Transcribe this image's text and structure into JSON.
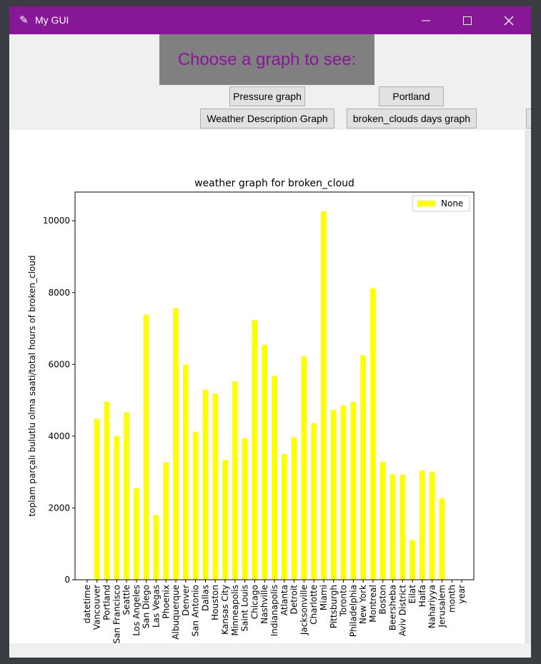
{
  "window": {
    "title": "My GUI",
    "icon": "feather-icon"
  },
  "header": {
    "prompt": "Choose a graph to see:"
  },
  "buttons": {
    "pressure": "Pressure graph",
    "portland": "Portland",
    "weather_description": "Weather Description Graph",
    "broken_clouds": "broken_clouds days graph"
  },
  "chart_data": {
    "type": "bar",
    "title": "weather graph for broken_cloud",
    "xlabel": "",
    "ylabel": "toplam parçalı bulutlu olma saati/total hours of broken_cloud",
    "ylim": [
      0,
      10800
    ],
    "yticks": [
      0,
      2000,
      4000,
      6000,
      8000,
      10000
    ],
    "legend": {
      "label": "None",
      "placement": "top-right"
    },
    "bar_color": "#ffff00",
    "categories": [
      "datetime",
      "Vancouver",
      "Portland",
      "San Francisco",
      "Seattle",
      "Los Angeles",
      "San Diego",
      "Las Vegas",
      "Phoenix",
      "Albuquerque",
      "Denver",
      "San Antonio",
      "Dallas",
      "Houston",
      "Kansas City",
      "Minneapolis",
      "Saint Louis",
      "Chicago",
      "Nashville",
      "Indianapolis",
      "Atlanta",
      "Detroit",
      "Jacksonville",
      "Charlotte",
      "Miami",
      "Pittsburgh",
      "Toronto",
      "Philadelphia",
      "New York",
      "Montreal",
      "Boston",
      "Beersheba",
      "Aviv District",
      "Eilat",
      "Haifa",
      "Nahariyya",
      "Jerusalem",
      "month",
      "year"
    ],
    "values": [
      0,
      4480,
      4960,
      4000,
      4660,
      2550,
      7380,
      1800,
      3270,
      7560,
      5990,
      4120,
      5290,
      5180,
      3340,
      5520,
      3940,
      7230,
      6540,
      5670,
      3500,
      3970,
      6220,
      4360,
      10260,
      4730,
      4850,
      4950,
      6250,
      8120,
      3280,
      2930,
      2920,
      1100,
      3040,
      3000,
      2270,
      0,
      0
    ]
  }
}
